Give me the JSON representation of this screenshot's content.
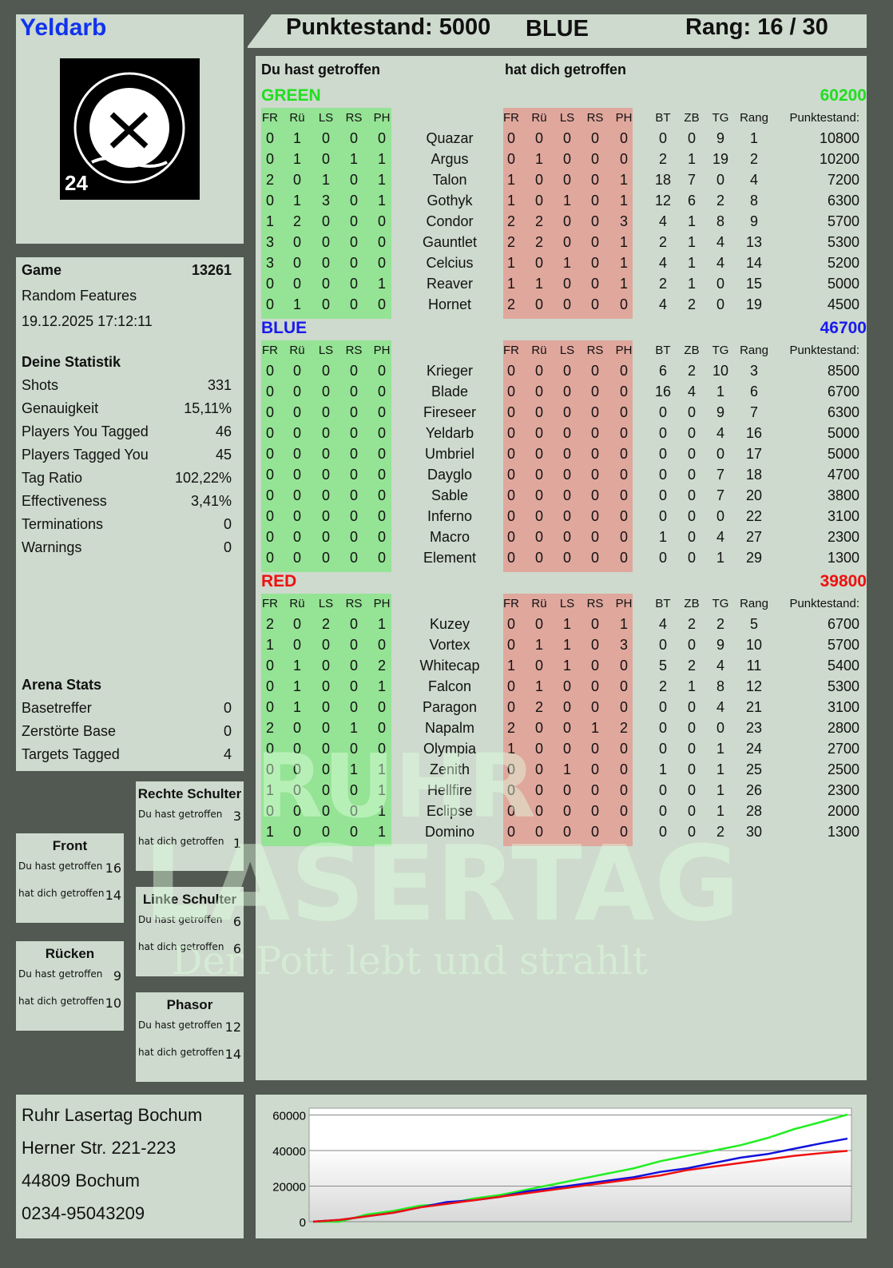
{
  "header": {
    "player": "Yeldarb",
    "score_label": "Punktestand: 5000",
    "team": "BLUE",
    "rank_label": "Rang: 16 / 30"
  },
  "logo": {
    "text": "RUHR LASERTAG",
    "badge": "24"
  },
  "watermark": {
    "line1": "RUHR",
    "line2": "LASERTAG",
    "slogan": "Der Pott lebt und strahlt"
  },
  "game": {
    "label": "Game",
    "number": "13261",
    "mode": "Random Features",
    "datetime": "19.12.2025 17:12:11"
  },
  "stats": {
    "title": "Deine Statistik",
    "rows": [
      [
        "Shots",
        "331"
      ],
      [
        "Genauigkeit",
        "15,11%"
      ],
      [
        "Players You Tagged",
        "46"
      ],
      [
        "Players Tagged You",
        "45"
      ],
      [
        "Tag Ratio",
        "102,22%"
      ],
      [
        "Effectiveness",
        "3,41%"
      ],
      [
        "Terminations",
        "0"
      ],
      [
        "Warnings",
        "0"
      ]
    ]
  },
  "arena": {
    "title": "Arena Stats",
    "rows": [
      [
        "Basetreffer",
        "0"
      ],
      [
        "Zerstörte Base",
        "0"
      ],
      [
        "Targets Tagged",
        "4"
      ]
    ]
  },
  "zones": [
    {
      "title": "Rechte Schulter",
      "hit": "3",
      "got": "1"
    },
    {
      "title": "Front",
      "hit": "16",
      "got": "14"
    },
    {
      "title": "Linke Schulter",
      "hit": "6",
      "got": "6"
    },
    {
      "title": "Rücken",
      "hit": "9",
      "got": "10"
    },
    {
      "title": "Phasor",
      "hit": "12",
      "got": "14"
    }
  ],
  "zone_labels": {
    "hit": "Du hast getroffen",
    "got": "hat dich getroffen"
  },
  "address": [
    "Ruhr Lasertag Bochum",
    "Herner Str. 221-223",
    "44809 Bochum",
    "0234-95043209"
  ],
  "table": {
    "you_hit": "Du hast getroffen",
    "hit_you": "hat dich getroffen",
    "columns": [
      "FR",
      "Rü",
      "LS",
      "RS",
      "PH",
      "FR",
      "Rü",
      "LS",
      "RS",
      "PH",
      "BT",
      "ZB",
      "TG",
      "Rang",
      "Punktestand:"
    ],
    "teams": [
      {
        "name": "GREEN",
        "total": "60200",
        "color": "#22dd22",
        "players": [
          [
            "Quazar",
            [
              0,
              1,
              0,
              0,
              0
            ],
            [
              0,
              0,
              0,
              0,
              0
            ],
            [
              0,
              0,
              9,
              1
            ],
            10800
          ],
          [
            "Argus",
            [
              0,
              1,
              0,
              1,
              1
            ],
            [
              0,
              1,
              0,
              0,
              0
            ],
            [
              2,
              1,
              19,
              2
            ],
            10200
          ],
          [
            "Talon",
            [
              2,
              0,
              1,
              0,
              1
            ],
            [
              1,
              0,
              0,
              0,
              1
            ],
            [
              18,
              7,
              0,
              4
            ],
            7200
          ],
          [
            "Gothyk",
            [
              0,
              1,
              3,
              0,
              1
            ],
            [
              1,
              0,
              1,
              0,
              1
            ],
            [
              12,
              6,
              2,
              8
            ],
            6300
          ],
          [
            "Condor",
            [
              1,
              2,
              0,
              0,
              0
            ],
            [
              2,
              2,
              0,
              0,
              3
            ],
            [
              4,
              1,
              8,
              9
            ],
            5700
          ],
          [
            "Gauntlet",
            [
              3,
              0,
              0,
              0,
              0
            ],
            [
              2,
              2,
              0,
              0,
              1
            ],
            [
              2,
              1,
              4,
              13
            ],
            5300
          ],
          [
            "Celcius",
            [
              3,
              0,
              0,
              0,
              0
            ],
            [
              1,
              0,
              1,
              0,
              1
            ],
            [
              4,
              1,
              4,
              14
            ],
            5200
          ],
          [
            "Reaver",
            [
              0,
              0,
              0,
              0,
              1
            ],
            [
              1,
              1,
              0,
              0,
              1
            ],
            [
              2,
              1,
              0,
              15
            ],
            5000
          ],
          [
            "Hornet",
            [
              0,
              1,
              0,
              0,
              0
            ],
            [
              2,
              0,
              0,
              0,
              0
            ],
            [
              4,
              2,
              0,
              19
            ],
            4500
          ]
        ]
      },
      {
        "name": "BLUE",
        "total": "46700",
        "color": "#1a1aee",
        "players": [
          [
            "Krieger",
            [
              0,
              0,
              0,
              0,
              0
            ],
            [
              0,
              0,
              0,
              0,
              0
            ],
            [
              6,
              2,
              10,
              3
            ],
            8500
          ],
          [
            "Blade",
            [
              0,
              0,
              0,
              0,
              0
            ],
            [
              0,
              0,
              0,
              0,
              0
            ],
            [
              16,
              4,
              1,
              6
            ],
            6700
          ],
          [
            "Fireseer",
            [
              0,
              0,
              0,
              0,
              0
            ],
            [
              0,
              0,
              0,
              0,
              0
            ],
            [
              0,
              0,
              9,
              7
            ],
            6300
          ],
          [
            "Yeldarb",
            [
              0,
              0,
              0,
              0,
              0
            ],
            [
              0,
              0,
              0,
              0,
              0
            ],
            [
              0,
              0,
              4,
              16
            ],
            5000
          ],
          [
            "Umbriel",
            [
              0,
              0,
              0,
              0,
              0
            ],
            [
              0,
              0,
              0,
              0,
              0
            ],
            [
              0,
              0,
              0,
              17
            ],
            5000
          ],
          [
            "Dayglo",
            [
              0,
              0,
              0,
              0,
              0
            ],
            [
              0,
              0,
              0,
              0,
              0
            ],
            [
              0,
              0,
              7,
              18
            ],
            4700
          ],
          [
            "Sable",
            [
              0,
              0,
              0,
              0,
              0
            ],
            [
              0,
              0,
              0,
              0,
              0
            ],
            [
              0,
              0,
              7,
              20
            ],
            3800
          ],
          [
            "Inferno",
            [
              0,
              0,
              0,
              0,
              0
            ],
            [
              0,
              0,
              0,
              0,
              0
            ],
            [
              0,
              0,
              0,
              22
            ],
            3100
          ],
          [
            "Macro",
            [
              0,
              0,
              0,
              0,
              0
            ],
            [
              0,
              0,
              0,
              0,
              0
            ],
            [
              1,
              0,
              4,
              27
            ],
            2300
          ],
          [
            "Element",
            [
              0,
              0,
              0,
              0,
              0
            ],
            [
              0,
              0,
              0,
              0,
              0
            ],
            [
              0,
              0,
              1,
              29
            ],
            1300
          ]
        ]
      },
      {
        "name": "RED",
        "total": "39800",
        "color": "#ee1111",
        "players": [
          [
            "Kuzey",
            [
              2,
              0,
              2,
              0,
              1
            ],
            [
              0,
              0,
              1,
              0,
              1
            ],
            [
              4,
              2,
              2,
              5
            ],
            6700
          ],
          [
            "Vortex",
            [
              1,
              0,
              0,
              0,
              0
            ],
            [
              0,
              1,
              1,
              0,
              3
            ],
            [
              0,
              0,
              9,
              10
            ],
            5700
          ],
          [
            "Whitecap",
            [
              0,
              1,
              0,
              0,
              2
            ],
            [
              1,
              0,
              1,
              0,
              0
            ],
            [
              5,
              2,
              4,
              11
            ],
            5400
          ],
          [
            "Falcon",
            [
              0,
              1,
              0,
              0,
              1
            ],
            [
              0,
              1,
              0,
              0,
              0
            ],
            [
              2,
              1,
              8,
              12
            ],
            5300
          ],
          [
            "Paragon",
            [
              0,
              1,
              0,
              0,
              0
            ],
            [
              0,
              2,
              0,
              0,
              0
            ],
            [
              0,
              0,
              4,
              21
            ],
            3100
          ],
          [
            "Napalm",
            [
              2,
              0,
              0,
              1,
              0
            ],
            [
              2,
              0,
              0,
              1,
              2
            ],
            [
              0,
              0,
              0,
              23
            ],
            2800
          ],
          [
            "Olympia",
            [
              0,
              0,
              0,
              0,
              0
            ],
            [
              1,
              0,
              0,
              0,
              0
            ],
            [
              0,
              0,
              1,
              24
            ],
            2700
          ],
          [
            "Zenith",
            [
              0,
              0,
              0,
              1,
              1
            ],
            [
              0,
              0,
              1,
              0,
              0
            ],
            [
              1,
              0,
              1,
              25
            ],
            2500
          ],
          [
            "Hellfire",
            [
              1,
              0,
              0,
              0,
              1
            ],
            [
              0,
              0,
              0,
              0,
              0
            ],
            [
              0,
              0,
              1,
              26
            ],
            2300
          ],
          [
            "Eclipse",
            [
              0,
              0,
              0,
              0,
              1
            ],
            [
              0,
              0,
              0,
              0,
              0
            ],
            [
              0,
              0,
              1,
              28
            ],
            2000
          ],
          [
            "Domino",
            [
              1,
              0,
              0,
              0,
              1
            ],
            [
              0,
              0,
              0,
              0,
              0
            ],
            [
              0,
              0,
              2,
              30
            ],
            1300
          ]
        ]
      }
    ]
  },
  "chart_data": {
    "type": "line",
    "yticks": [
      "0",
      "20000",
      "40000",
      "60000"
    ],
    "ylim": [
      0,
      62000
    ],
    "grid": true,
    "series": [
      {
        "color": "#22ee22",
        "values": [
          0,
          0,
          4000,
          6000,
          9000,
          10000,
          13000,
          15000,
          18000,
          21000,
          24000,
          27000,
          30000,
          34000,
          37000,
          40000,
          43000,
          47000,
          52000,
          56000,
          60200
        ]
      },
      {
        "color": "#1111dd",
        "values": [
          0,
          1000,
          3000,
          5000,
          8000,
          11000,
          12000,
          14000,
          17000,
          19000,
          21000,
          23000,
          25000,
          28000,
          30000,
          33000,
          36000,
          38000,
          41000,
          44000,
          46700
        ]
      },
      {
        "color": "#ee1111",
        "values": [
          0,
          1000,
          3000,
          5000,
          8000,
          10000,
          12000,
          14000,
          16000,
          18000,
          20000,
          22000,
          24000,
          26000,
          29000,
          31000,
          33000,
          35000,
          37000,
          38500,
          39800
        ]
      }
    ]
  }
}
